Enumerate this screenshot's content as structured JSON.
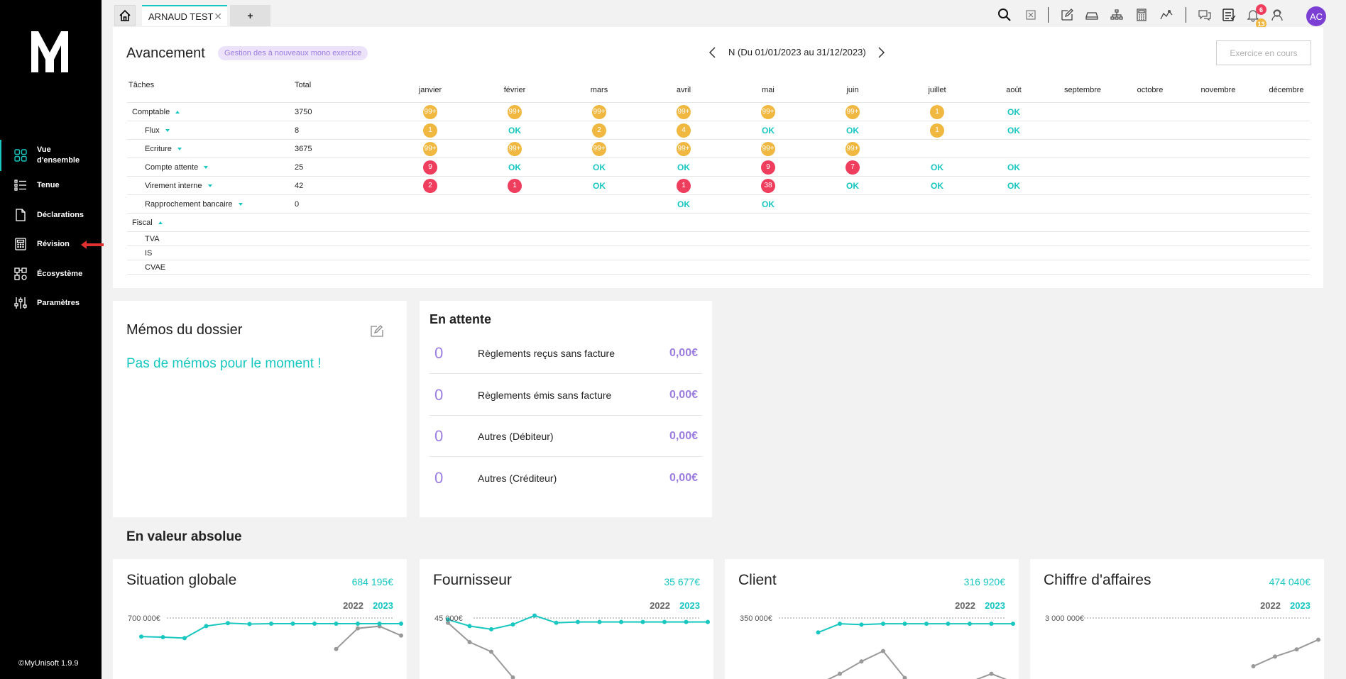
{
  "sidebar": {
    "version": "©MyUnisoft 1.9.9",
    "items": [
      {
        "label_line1": "Vue",
        "label_line2": "d'ensemble",
        "icon": "grid-icon",
        "active": true
      },
      {
        "label": "Tenue",
        "icon": "list-icon"
      },
      {
        "label": "Déclarations",
        "icon": "document-icon"
      },
      {
        "label": "Révision",
        "icon": "calculator-icon"
      },
      {
        "label": "Écosystème",
        "icon": "ecosystem-icon"
      },
      {
        "label": "Paramètres",
        "icon": "sliders-icon"
      }
    ]
  },
  "topbar": {
    "client_tab": "ARNAUD TEST",
    "add_tab": "+",
    "notifications_red": "6",
    "notifications_yellow": "13",
    "avatar": "AC"
  },
  "progress": {
    "title": "Avancement",
    "mode_badge": "Gestion des à nouveaux mono exercice",
    "period": "N (Du 01/01/2023 au 31/12/2023)",
    "exercise_button": "Exercice en cours",
    "col_tasks": "Tâches",
    "col_total": "Total",
    "months": [
      "janvier",
      "février",
      "mars",
      "avril",
      "mai",
      "juin",
      "juillet",
      "août",
      "septembre",
      "octobre",
      "novembre",
      "décembre"
    ],
    "rows": [
      {
        "name": "Comptable",
        "total": "3750",
        "level": 0,
        "caret": "up",
        "cells": [
          [
            "y",
            "99+"
          ],
          [
            "y",
            "99+"
          ],
          [
            "y",
            "99+"
          ],
          [
            "y",
            "99+"
          ],
          [
            "y",
            "99+"
          ],
          [
            "y",
            "99+"
          ],
          [
            "y",
            "1"
          ],
          [
            "ok",
            "OK"
          ]
        ]
      },
      {
        "name": "Flux",
        "total": "8",
        "level": 1,
        "caret": "down",
        "cells": [
          [
            "y",
            "1"
          ],
          [
            "ok",
            "OK"
          ],
          [
            "y",
            "2"
          ],
          [
            "y",
            "4"
          ],
          [
            "ok",
            "OK"
          ],
          [
            "ok",
            "OK"
          ],
          [
            "y",
            "1"
          ],
          [
            "ok",
            "OK"
          ]
        ]
      },
      {
        "name": "Ecriture",
        "total": "3675",
        "level": 1,
        "caret": "down",
        "cells": [
          [
            "y",
            "99+"
          ],
          [
            "y",
            "99+"
          ],
          [
            "y",
            "99+"
          ],
          [
            "y",
            "99+"
          ],
          [
            "y",
            "99+"
          ],
          [
            "y",
            "99+"
          ]
        ]
      },
      {
        "name": "Compte attente",
        "total": "25",
        "level": 1,
        "caret": "down",
        "cells": [
          [
            "r",
            "9"
          ],
          [
            "ok",
            "OK"
          ],
          [
            "ok",
            "OK"
          ],
          [
            "ok",
            "OK"
          ],
          [
            "r",
            "9"
          ],
          [
            "r",
            "7"
          ],
          [
            "ok",
            "OK"
          ],
          [
            "ok",
            "OK"
          ]
        ]
      },
      {
        "name": "Virement interne",
        "total": "42",
        "level": 1,
        "caret": "down",
        "cells": [
          [
            "r",
            "2"
          ],
          [
            "r",
            "1"
          ],
          [
            "ok",
            "OK"
          ],
          [
            "r",
            "1"
          ],
          [
            "r",
            "38"
          ],
          [
            "ok",
            "OK"
          ],
          [
            "ok",
            "OK"
          ],
          [
            "ok",
            "OK"
          ]
        ]
      },
      {
        "name": "Rapprochement bancaire",
        "total": "0",
        "level": 1,
        "caret": "down",
        "cells": [
          [
            "",
            ""
          ],
          [
            "",
            ""
          ],
          [
            "",
            ""
          ],
          [
            "ok",
            "OK"
          ],
          [
            "ok",
            "OK"
          ]
        ]
      },
      {
        "name": "Fiscal",
        "total": "",
        "level": 0,
        "caret": "up",
        "cells": []
      },
      {
        "name": "TVA",
        "total": "",
        "level": 1,
        "caret": "",
        "small": true,
        "cells": []
      },
      {
        "name": "IS",
        "total": "",
        "level": 1,
        "caret": "",
        "small": true,
        "cells": []
      },
      {
        "name": "CVAE",
        "total": "",
        "level": 1,
        "caret": "",
        "small": true,
        "cells": []
      }
    ]
  },
  "memos": {
    "title": "Mémos du dossier",
    "empty": "Pas de mémos pour le moment !"
  },
  "pending": {
    "title": "En attente",
    "rows": [
      {
        "count": "0",
        "label": "Règlements reçus sans facture",
        "amount": "0,00€"
      },
      {
        "count": "0",
        "label": "Règlements émis sans facture",
        "amount": "0,00€"
      },
      {
        "count": "0",
        "label": "Autres (Débiteur)",
        "amount": "0,00€"
      },
      {
        "count": "0",
        "label": "Autres (Créditeur)",
        "amount": "0,00€"
      }
    ]
  },
  "absolute": {
    "title": "En valeur absolue",
    "year_prev": "2022",
    "year_curr": "2023",
    "colors": {
      "prev": "#999999",
      "curr": "#17c7c0"
    },
    "cards": [
      {
        "title": "Situation globale",
        "total": "684 195€",
        "tick": "700 000€",
        "max": 700000,
        "curr": [
          520000,
          515000,
          505000,
          622000,
          650000,
          642000,
          645000,
          645000,
          645000,
          645000,
          645000,
          645000,
          645000
        ],
        "prev": [
          null,
          null,
          null,
          null,
          null,
          null,
          null,
          null,
          null,
          400000,
          600000,
          620000,
          530000
        ]
      },
      {
        "title": "Fournisseur",
        "total": "35 677€",
        "tick": "45 000€",
        "max": 45000,
        "curr": [
          44000,
          40000,
          38000,
          41000,
          46500,
          42000,
          42500,
          42500,
          42500,
          42500,
          42500,
          42500,
          42500
        ],
        "prev": [
          42000,
          30000,
          24000,
          8000,
          null,
          3000,
          null,
          null,
          null,
          null,
          null,
          null,
          3000
        ]
      },
      {
        "title": "Client",
        "total": "316 920€",
        "tick": "350 000€",
        "max": 350000,
        "curr": [
          null,
          null,
          null,
          280000,
          322000,
          318000,
          322000,
          322000,
          322000,
          322000,
          322000,
          322000,
          322000
        ],
        "prev": [
          null,
          null,
          null,
          30000,
          80000,
          140000,
          190000,
          60000,
          null,
          10000,
          40000,
          80000,
          40000
        ]
      },
      {
        "title": "Chiffre d'affaires",
        "total": "474 040€",
        "tick": "3 000 000€",
        "max": 3000000,
        "curr": [],
        "prev": [
          null,
          null,
          null,
          null,
          null,
          null,
          null,
          null,
          null,
          1000000,
          1400000,
          1700000,
          2100000
        ]
      }
    ]
  }
}
